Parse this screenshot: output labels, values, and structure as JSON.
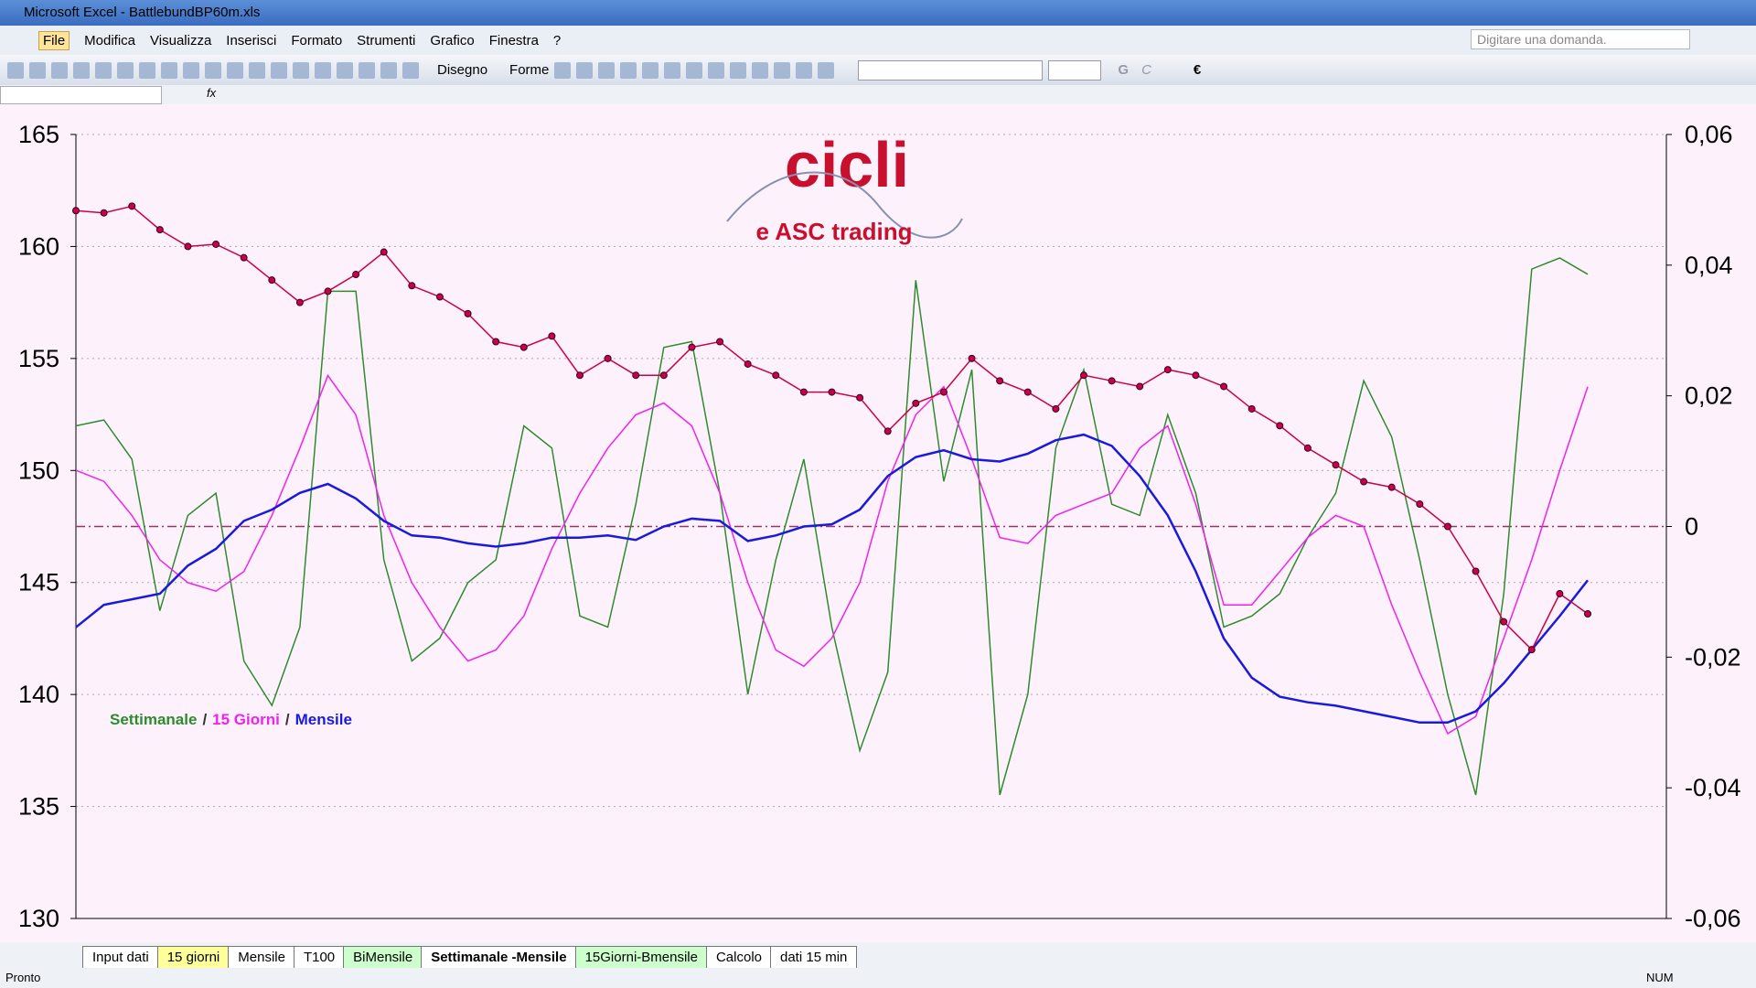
{
  "window": {
    "title": "Microsoft Excel - BattlebundBP60m.xls"
  },
  "menu": [
    "File",
    "Modifica",
    "Visualizza",
    "Inserisci",
    "Formato",
    "Strumenti",
    "Grafico",
    "Finestra",
    "?"
  ],
  "help_box": {
    "placeholder": "Digitare una domanda."
  },
  "toolbar": {
    "draw": "Disegno",
    "shapes": "Forme",
    "bold": "G",
    "italic": "C",
    "currency": "€"
  },
  "formula_bar": {
    "fx": "fx"
  },
  "sheet_tabs": [
    {
      "label": "Input dati",
      "color": "#ffffff"
    },
    {
      "label": "15 giorni",
      "color": "#ffff99"
    },
    {
      "label": "Mensile",
      "color": "#ffffff"
    },
    {
      "label": "T100",
      "color": "#ffffff"
    },
    {
      "label": "BiMensile",
      "color": "#ccffcc"
    },
    {
      "label": "Settimanale -Mensile",
      "color": "#ffffff",
      "active": true
    },
    {
      "label": "15Giorni-Bmensile",
      "color": "#ccffcc"
    },
    {
      "label": "Calcolo",
      "color": "#ffffff"
    },
    {
      "label": "dati 15 min",
      "color": "#ffffff"
    }
  ],
  "status_bar": {
    "left": "Pronto",
    "right": "NUM"
  },
  "chart_data": {
    "type": "line",
    "logo": {
      "title": "cicli",
      "subtitle": "e ASC trading"
    },
    "ylim": [
      130,
      165
    ],
    "yticks": [
      130,
      135,
      140,
      145,
      150,
      155,
      160,
      165
    ],
    "y2lim": [
      -0.06,
      0.06
    ],
    "y2ticks": [
      {
        "value": -0.06,
        "label": "-0,06"
      },
      {
        "value": -0.04,
        "label": "-0,04"
      },
      {
        "value": -0.02,
        "label": "-0,02"
      },
      {
        "value": 0,
        "label": "0"
      },
      {
        "value": 0.02,
        "label": "0,02"
      },
      {
        "value": 0.04,
        "label": "0,04"
      },
      {
        "value": 0.06,
        "label": "0,06"
      }
    ],
    "grid": true,
    "reference_line": {
      "axis": "y2",
      "value": 0,
      "color": "#993366"
    },
    "legend_separator": "/",
    "series": [
      {
        "color": "#cc0044",
        "marker": true,
        "values": [
          161.6,
          161.5,
          161.8,
          160.75,
          160,
          160.1,
          159.5,
          158.5,
          157.5,
          158,
          158.75,
          159.75,
          158.25,
          157.75,
          157,
          155.75,
          155.5,
          156,
          154.25,
          155,
          154.25,
          154.25,
          155.5,
          155.75,
          154.75,
          154.25,
          153.5,
          153.5,
          153.25,
          151.75,
          153,
          153.5,
          155,
          154,
          153.5,
          152.75,
          154.25,
          154,
          153.75,
          154.5,
          154.25,
          153.75,
          152.75,
          152,
          151,
          150.25,
          149.5,
          149.25,
          148.5,
          147.5,
          145.5,
          143.25,
          142,
          144.5,
          143.6
        ]
      },
      {
        "name": "Settimanale",
        "color": "#2e8b2e",
        "axis": "y2",
        "values": [
          0.0154,
          0.0163,
          0.0103,
          -0.0129,
          0.0017,
          0.0051,
          -0.0206,
          -0.0274,
          -0.0154,
          0.036,
          0.036,
          -0.0051,
          -0.0206,
          -0.0171,
          -0.0086,
          -0.0051,
          0.0154,
          0.012,
          -0.0137,
          -0.0154,
          0.0034,
          0.0274,
          0.0283,
          0.0051,
          -0.0257,
          -0.0051,
          0.0103,
          -0.0154,
          -0.0343,
          -0.0223,
          0.0377,
          0.0069,
          0.024,
          -0.0411,
          -0.0257,
          0.012,
          0.024,
          0.0034,
          0.0017,
          0.0171,
          0.0051,
          -0.0154,
          -0.0137,
          -0.0103,
          -0.0017,
          0.0051,
          0.0223,
          0.0137,
          -0.0051,
          -0.0257,
          -0.0411,
          -0.0103,
          0.0394,
          0.0411,
          0.0386
        ]
      },
      {
        "name": "15 Giorni",
        "color": "#ee22ee",
        "axis": "y2",
        "values": [
          0.0086,
          0.0069,
          0.0017,
          -0.0051,
          -0.0086,
          -0.0099,
          -0.0069,
          0.0017,
          0.012,
          0.0231,
          0.0171,
          0.0017,
          -0.0086,
          -0.0154,
          -0.0206,
          -0.0189,
          -0.0137,
          -0.0034,
          0.0051,
          0.012,
          0.0171,
          0.0189,
          0.0154,
          0.0051,
          -0.0086,
          -0.0189,
          -0.0214,
          -0.0171,
          -0.0086,
          0.0069,
          0.0171,
          0.0214,
          0.0103,
          -0.0017,
          -0.0026,
          0.0017,
          0.0034,
          0.0051,
          0.012,
          0.0154,
          0.0034,
          -0.012,
          -0.012,
          -0.0069,
          -0.0017,
          0.0017,
          0,
          -0.012,
          -0.0223,
          -0.0317,
          -0.0291,
          -0.0171,
          -0.0051,
          0.0086,
          0.0214
        ]
      },
      {
        "name": "Mensile",
        "color": "#1a1adc",
        "values": [
          143,
          144,
          144.25,
          144.5,
          145.75,
          146.5,
          147.75,
          148.25,
          149,
          149.4,
          148.75,
          147.75,
          147.1,
          147,
          146.75,
          146.6,
          146.75,
          147,
          147,
          147.1,
          146.9,
          147.5,
          147.85,
          147.75,
          146.85,
          147.1,
          147.5,
          147.6,
          148.25,
          149.75,
          150.6,
          150.9,
          150.5,
          150.4,
          150.75,
          151.35,
          151.6,
          151.1,
          149.75,
          148,
          145.5,
          142.5,
          140.75,
          139.9,
          139.65,
          139.5,
          139.25,
          139,
          138.75,
          138.75,
          139.25,
          140.5,
          142,
          143.5,
          145.1
        ]
      }
    ]
  }
}
